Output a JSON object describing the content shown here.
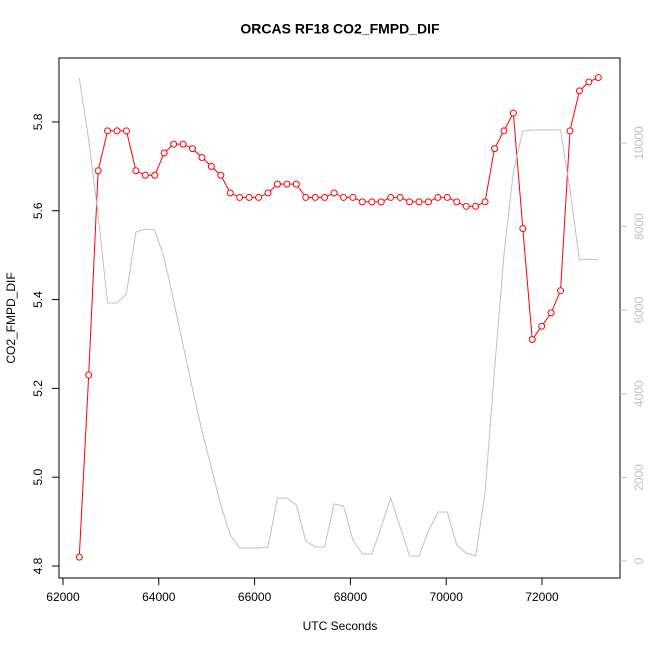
{
  "chart_data": {
    "type": "line",
    "title": "ORCAS RF18 CO2_FMPD_DIF",
    "x_label": "UTC Seconds",
    "y_label": "CO2_FMPD_DIF",
    "x": [
      62340,
      62537,
      62734,
      62931,
      63128,
      63325,
      63522,
      63719,
      63916,
      64113,
      64310,
      64507,
      64704,
      64901,
      65098,
      65295,
      65492,
      65689,
      65886,
      66083,
      66280,
      66477,
      66674,
      66871,
      67068,
      67265,
      67462,
      67659,
      67856,
      68053,
      68250,
      68447,
      68644,
      68841,
      69038,
      69235,
      69432,
      69629,
      69826,
      70023,
      70220,
      70417,
      70614,
      70811,
      71008,
      71205,
      71402,
      71599,
      71796,
      71993,
      72190,
      72387,
      72584,
      72781,
      72978,
      73175
    ],
    "series": [
      {
        "color": "#ff0000",
        "markers": true,
        "values": [
          4.82,
          5.23,
          5.69,
          5.78,
          5.78,
          5.78,
          5.69,
          5.68,
          5.68,
          5.73,
          5.75,
          5.75,
          5.74,
          5.72,
          5.7,
          5.68,
          5.64,
          5.63,
          5.63,
          5.63,
          5.64,
          5.66,
          5.66,
          5.66,
          5.63,
          5.63,
          5.63,
          5.64,
          5.63,
          5.63,
          5.62,
          5.62,
          5.62,
          5.63,
          5.63,
          5.62,
          5.62,
          5.62,
          5.63,
          5.63,
          5.62,
          5.61,
          5.61,
          5.62,
          5.74,
          5.78,
          5.82,
          5.56,
          5.31,
          5.34,
          5.37,
          5.42,
          5.78,
          5.87,
          5.89,
          5.9
        ]
      },
      {
        "color": "#c0c0c0",
        "axis": "y2",
        "markers": false,
        "values": [
          11555,
          10072,
          8278,
          6172,
          6172,
          6388,
          7871,
          7943,
          7919,
          7249,
          6220,
          5167,
          4115,
          3110,
          2225,
          1340,
          622,
          311,
          311,
          311,
          335,
          1507,
          1507,
          1340,
          478,
          335,
          335,
          1364,
          1316,
          502,
          167,
          167,
          813,
          1507,
          813,
          120,
          120,
          718,
          1172,
          1172,
          383,
          191,
          120,
          1627,
          4569,
          7321,
          9306,
          10287,
          10311,
          10311,
          10311,
          10311,
          8876,
          7201,
          7225,
          7201
        ]
      }
    ],
    "xlim": [
      61917,
      73628
    ],
    "xticks": [
      62000,
      64000,
      66000,
      68000,
      70000,
      72000
    ],
    "ylim": [
      4.773,
      5.944
    ],
    "yticks": [
      4.8,
      {
        "value": 5,
        "label": "5.0"
      },
      5.2,
      5.4,
      5.6,
      5.8
    ],
    "y2lim": [
      -407,
      12033
    ],
    "y2ticks": [
      0,
      2000,
      4000,
      6000,
      8000,
      10000
    ],
    "y2_color": "#c0c0c0"
  }
}
